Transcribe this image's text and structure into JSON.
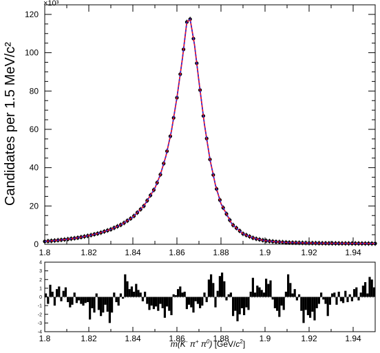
{
  "chart_data": [
    {
      "type": "scatter",
      "ylabel": "Candidates per 1.5 MeV/c²",
      "exponent_label": "×10³",
      "xlim": [
        1.8,
        1.95
      ],
      "ylim": [
        0,
        125
      ],
      "x_ticks": [
        "1.8",
        "1.82",
        "1.84",
        "1.86",
        "1.88",
        "1.9",
        "1.92",
        "1.94"
      ],
      "y_ticks": [
        "0",
        "20",
        "40",
        "60",
        "80",
        "100",
        "120"
      ],
      "series": [
        {
          "marker": "filled-circle",
          "color": "#000000",
          "points": [
            [
              1.8,
              1.5
            ],
            [
              1.805,
              2.0
            ],
            [
              1.81,
              2.6
            ],
            [
              1.815,
              3.4
            ],
            [
              1.82,
              4.5
            ],
            [
              1.825,
              5.9
            ],
            [
              1.83,
              7.8
            ],
            [
              1.835,
              10.4
            ],
            [
              1.84,
              14.2
            ],
            [
              1.845,
              20.0
            ],
            [
              1.85,
              29.3
            ],
            [
              1.8525,
              36.4
            ],
            [
              1.855,
              46.0
            ],
            [
              1.8575,
              59.0
            ],
            [
              1.86,
              76.5
            ],
            [
              1.8625,
              97.0
            ],
            [
              1.8645,
              116.0
            ],
            [
              1.866,
              117.5
            ],
            [
              1.868,
              104.0
            ],
            [
              1.87,
              85.0
            ],
            [
              1.8725,
              62.5
            ],
            [
              1.875,
              44.3
            ],
            [
              1.8775,
              30.8
            ],
            [
              1.88,
              21.2
            ],
            [
              1.885,
              10.5
            ],
            [
              1.89,
              5.5
            ],
            [
              1.895,
              3.1
            ],
            [
              1.9,
              1.9
            ],
            [
              1.905,
              1.3
            ],
            [
              1.91,
              0.95
            ],
            [
              1.92,
              0.65
            ],
            [
              1.93,
              0.5
            ],
            [
              1.94,
              0.45
            ],
            [
              1.95,
              0.4
            ]
          ]
        },
        {
          "marker": "line",
          "color": "#e8102a",
          "points": [
            [
              1.8,
              1.5
            ],
            [
              1.805,
              2.0
            ],
            [
              1.81,
              2.6
            ],
            [
              1.815,
              3.4
            ],
            [
              1.82,
              4.5
            ],
            [
              1.825,
              5.9
            ],
            [
              1.83,
              7.8
            ],
            [
              1.835,
              10.4
            ],
            [
              1.84,
              14.2
            ],
            [
              1.845,
              20.0
            ],
            [
              1.85,
              29.3
            ],
            [
              1.8525,
              36.4
            ],
            [
              1.855,
              46.0
            ],
            [
              1.8575,
              59.0
            ],
            [
              1.86,
              76.5
            ],
            [
              1.8625,
              97.0
            ],
            [
              1.8645,
              116.0
            ],
            [
              1.866,
              117.5
            ],
            [
              1.868,
              104.0
            ],
            [
              1.87,
              85.0
            ],
            [
              1.8725,
              62.5
            ],
            [
              1.875,
              44.3
            ],
            [
              1.8775,
              30.8
            ],
            [
              1.88,
              21.2
            ],
            [
              1.885,
              10.5
            ],
            [
              1.89,
              5.5
            ],
            [
              1.895,
              3.1
            ],
            [
              1.9,
              1.9
            ],
            [
              1.905,
              1.3
            ],
            [
              1.91,
              0.95
            ],
            [
              1.92,
              0.65
            ],
            [
              1.93,
              0.5
            ],
            [
              1.94,
              0.45
            ],
            [
              1.95,
              0.4
            ]
          ]
        },
        {
          "marker": "dashed-line",
          "color": "#2a2ad8",
          "points": [
            [
              1.8,
              1.5
            ],
            [
              1.805,
              2.0
            ],
            [
              1.81,
              2.6
            ],
            [
              1.815,
              3.4
            ],
            [
              1.82,
              4.5
            ],
            [
              1.825,
              5.9
            ],
            [
              1.83,
              7.8
            ],
            [
              1.835,
              10.4
            ],
            [
              1.84,
              14.2
            ],
            [
              1.845,
              20.0
            ],
            [
              1.85,
              29.3
            ],
            [
              1.8525,
              36.4
            ],
            [
              1.855,
              46.0
            ],
            [
              1.8575,
              59.0
            ],
            [
              1.86,
              76.5
            ],
            [
              1.8625,
              97.0
            ],
            [
              1.8645,
              116.0
            ],
            [
              1.866,
              117.5
            ],
            [
              1.868,
              104.0
            ],
            [
              1.87,
              85.0
            ],
            [
              1.8725,
              62.5
            ],
            [
              1.875,
              44.3
            ],
            [
              1.8775,
              30.8
            ],
            [
              1.88,
              21.2
            ],
            [
              1.885,
              10.5
            ],
            [
              1.89,
              5.5
            ],
            [
              1.895,
              3.1
            ],
            [
              1.9,
              1.9
            ],
            [
              1.905,
              1.3
            ],
            [
              1.91,
              0.95
            ],
            [
              1.92,
              0.65
            ],
            [
              1.93,
              0.5
            ],
            [
              1.94,
              0.45
            ],
            [
              1.95,
              0.4
            ]
          ]
        }
      ]
    },
    {
      "type": "bar",
      "xlabel_parts": {
        "m": "m",
        "paren_open": "(K",
        "sup1": "-",
        "pi1": " π",
        "sup2": "+",
        "pi2": " π",
        "sup3": "0",
        "paren_close": ")",
        "unit_open": " [GeV/",
        "unit_c": "c",
        "unit_pow": "2",
        "unit_close": "]"
      },
      "xlim": [
        1.8,
        1.95
      ],
      "ylim": [
        -4,
        4
      ],
      "x_ticks": [
        "1.8",
        "1.82",
        "1.84",
        "1.86",
        "1.88",
        "1.9",
        "1.92",
        "1.94"
      ],
      "y_ticks": [
        "-4",
        "-3",
        "-2",
        "-1",
        "0",
        "1",
        "2",
        "3",
        "4"
      ],
      "x": [
        1.8,
        1.801,
        1.802,
        1.803,
        1.804,
        1.805,
        1.806,
        1.807,
        1.808,
        1.809,
        1.81,
        1.811,
        1.812,
        1.813,
        1.814,
        1.815,
        1.816,
        1.817,
        1.818,
        1.819,
        1.82,
        1.821,
        1.822,
        1.823,
        1.824,
        1.825,
        1.826,
        1.827,
        1.828,
        1.829,
        1.83,
        1.831,
        1.832,
        1.833,
        1.834,
        1.835,
        1.836,
        1.837,
        1.838,
        1.839,
        1.84,
        1.841,
        1.842,
        1.843,
        1.844,
        1.845,
        1.846,
        1.847,
        1.848,
        1.849,
        1.85,
        1.851,
        1.852,
        1.853,
        1.854,
        1.855,
        1.856,
        1.857,
        1.858,
        1.859,
        1.86,
        1.861,
        1.862,
        1.863,
        1.864,
        1.865,
        1.866,
        1.867,
        1.868,
        1.869,
        1.87,
        1.871,
        1.872,
        1.873,
        1.874,
        1.875,
        1.876,
        1.877,
        1.878,
        1.879,
        1.88,
        1.881,
        1.882,
        1.883,
        1.884,
        1.885,
        1.886,
        1.887,
        1.888,
        1.889,
        1.89,
        1.891,
        1.892,
        1.893,
        1.894,
        1.895,
        1.896,
        1.897,
        1.898,
        1.899,
        1.9,
        1.901,
        1.902,
        1.903,
        1.904,
        1.905,
        1.906,
        1.907,
        1.908,
        1.909,
        1.91,
        1.911,
        1.912,
        1.913,
        1.914,
        1.915,
        1.916,
        1.917,
        1.918,
        1.919,
        1.92,
        1.921,
        1.922,
        1.923,
        1.924,
        1.925,
        1.926,
        1.927,
        1.928,
        1.929,
        1.93,
        1.931,
        1.932,
        1.933,
        1.934,
        1.935,
        1.936,
        1.937,
        1.938,
        1.939,
        1.94,
        1.941,
        1.942,
        1.943,
        1.944,
        1.945,
        1.946,
        1.947,
        1.948,
        1.949
      ],
      "values": [
        0.4,
        -0.8,
        1.4,
        0.6,
        -1.0,
        0.9,
        1.2,
        -0.5,
        0.7,
        1.1,
        -0.6,
        -1.2,
        -0.9,
        0.5,
        -0.7,
        -0.4,
        -0.8,
        -1.0,
        -0.7,
        -0.6,
        -2.6,
        -1.3,
        -1.8,
        0.4,
        -1.5,
        -2.2,
        -1.8,
        -0.9,
        -1.7,
        -3.0,
        -1.8,
        0.5,
        -0.6,
        -1.0,
        0.4,
        -0.2,
        2.6,
        1.8,
        0.9,
        1.2,
        0.6,
        1.5,
        0.8,
        0.5,
        -0.5,
        0.6,
        -0.8,
        -1.5,
        -1.0,
        -1.4,
        -1.1,
        -1.6,
        -0.8,
        -1.3,
        -2.4,
        -1.1,
        -1.6,
        -2.1,
        0.3,
        0.2,
        0.9,
        1.2,
        0.5,
        0.6,
        -1.4,
        -0.9,
        -1.2,
        -1.8,
        -0.5,
        -0.8,
        -1.3,
        -1.0,
        0.5,
        -0.6,
        2.0,
        2.6,
        1.6,
        -1.2,
        0.7,
        2.4,
        2.8,
        1.8,
        -0.4,
        0.3,
        0.5,
        -2.2,
        -1.6,
        -2.8,
        -2.0,
        -1.3,
        -2.1,
        -1.2,
        -1.5,
        0.6,
        2.2,
        0.5,
        1.3,
        1.1,
        0.8,
        0.5,
        2.1,
        1.5,
        1.9,
        -0.3,
        -1.3,
        -1.6,
        -2.3,
        -1.0,
        -1.5,
        0.6,
        2.6,
        1.6,
        0.4,
        0.9,
        -0.4,
        0.3,
        -1.6,
        -3.0,
        -1.5,
        -2.1,
        -2.4,
        -1.7,
        -2.7,
        -1.3,
        -0.8,
        0.5,
        -0.3,
        -0.8,
        -2.2,
        -0.9,
        0.4,
        0.5,
        -0.9,
        0.6,
        -0.5,
        -0.7,
        0.7,
        -0.6,
        0.3,
        -0.5,
        0.9,
        1.1,
        -0.4,
        0.5,
        1.3,
        1.7,
        0.4,
        2.3,
        2.0,
        1.1
      ]
    }
  ]
}
